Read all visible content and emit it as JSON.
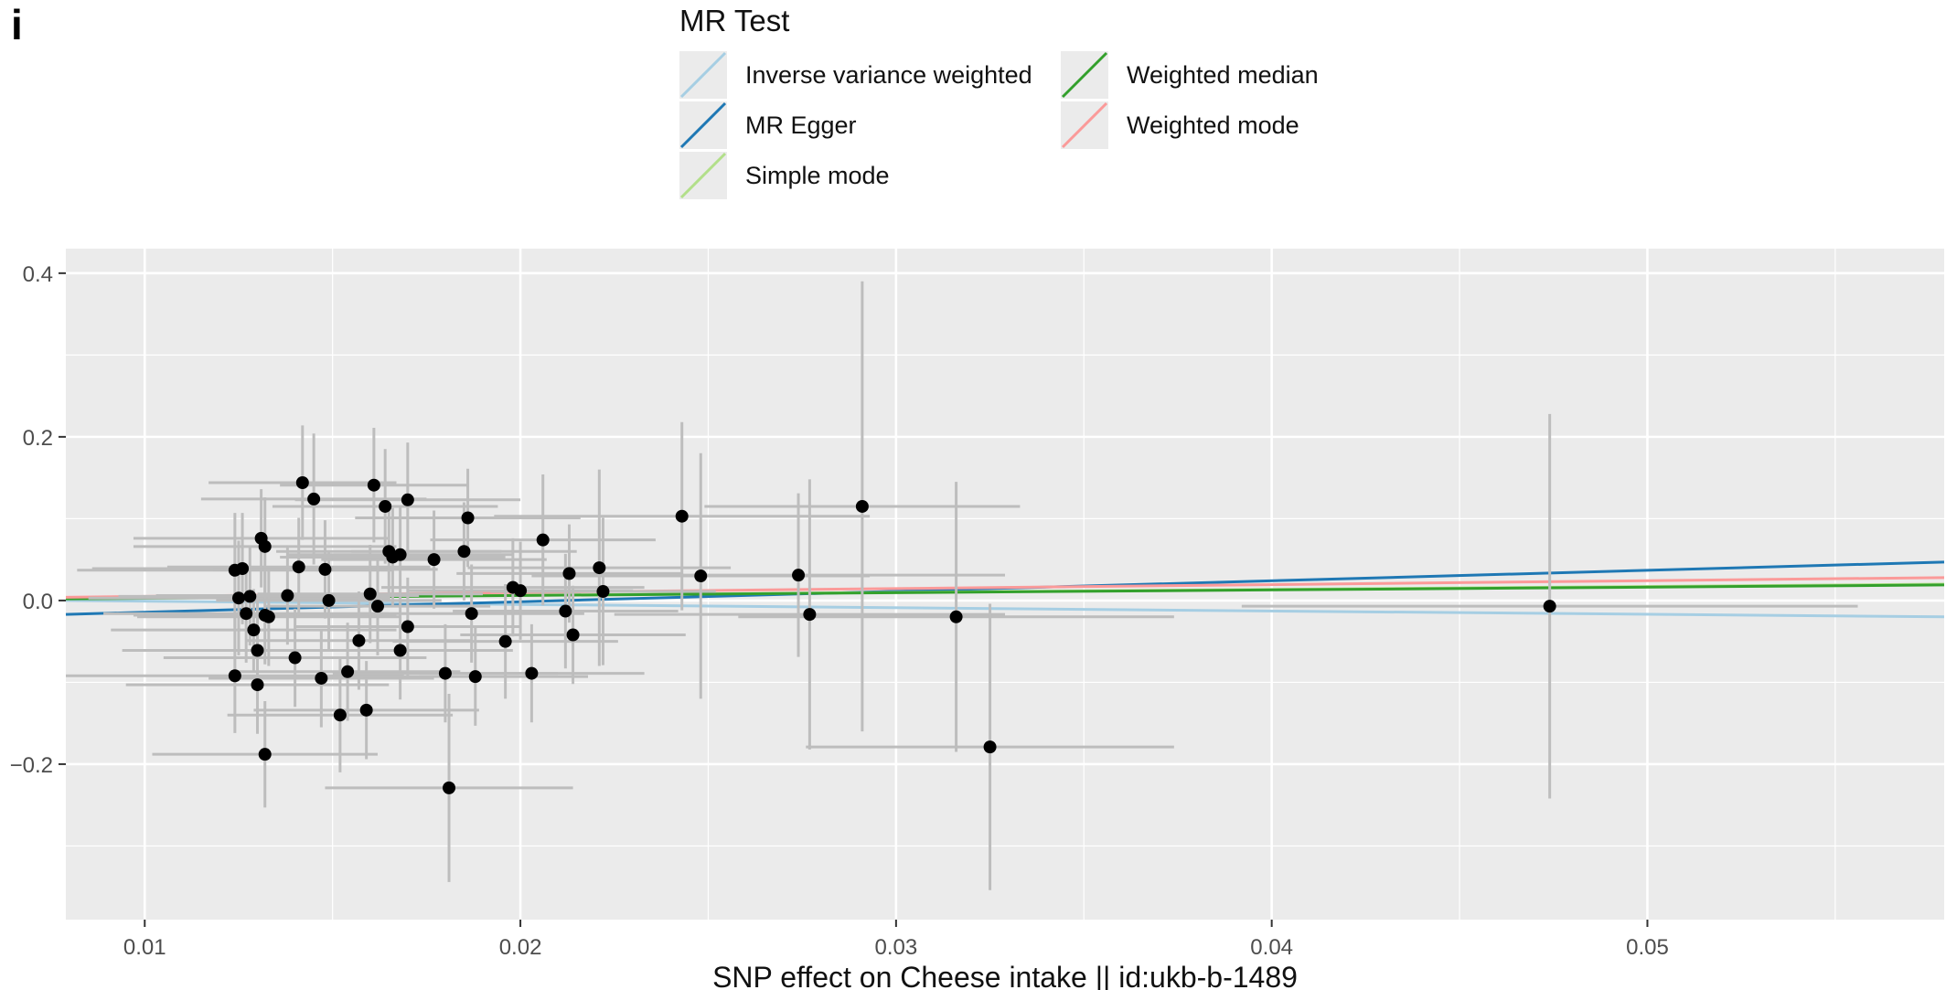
{
  "panel_tag": "i",
  "legend": {
    "title": "MR Test",
    "items": [
      {
        "label": "Inverse variance weighted",
        "color": "#a6cee3"
      },
      {
        "label": "MR Egger",
        "color": "#1f78b4"
      },
      {
        "label": "Simple mode",
        "color": "#b2df8a"
      },
      {
        "label": "Weighted median",
        "color": "#33a02c"
      },
      {
        "label": "Weighted mode",
        "color": "#fb9a99"
      }
    ]
  },
  "chart_data": {
    "type": "scatter",
    "title": "",
    "xlabel": "SNP effect on Cheese intake || id:ukb-b-1489",
    "ylabel": "",
    "xlim": [
      0.0079,
      0.0579
    ],
    "ylim": [
      -0.39,
      0.43
    ],
    "x_ticks": [
      0.01,
      0.02,
      0.03,
      0.04,
      0.05
    ],
    "x_tick_labels": [
      "0.01",
      "0.02",
      "0.03",
      "0.04",
      "0.05"
    ],
    "y_ticks": [
      -0.2,
      0.0,
      0.2,
      0.4
    ],
    "y_tick_labels": [
      "−0.2",
      "0.0",
      "0.2",
      "0.4"
    ],
    "grid": true,
    "background": "#ebebeb",
    "point_color": "#000000",
    "errorbar_color": "#bdbdbd",
    "points": [
      {
        "x": 0.0124,
        "y": 0.037,
        "xerr": 0.0042,
        "yerr": 0.07
      },
      {
        "x": 0.0126,
        "y": 0.039,
        "xerr": 0.004,
        "yerr": 0.068
      },
      {
        "x": 0.0125,
        "y": 0.003,
        "xerr": 0.004,
        "yerr": 0.07
      },
      {
        "x": 0.0128,
        "y": 0.005,
        "xerr": 0.0035,
        "yerr": 0.06
      },
      {
        "x": 0.0127,
        "y": -0.016,
        "xerr": 0.0038,
        "yerr": 0.06
      },
      {
        "x": 0.0129,
        "y": -0.036,
        "xerr": 0.0038,
        "yerr": 0.05
      },
      {
        "x": 0.013,
        "y": -0.061,
        "xerr": 0.0036,
        "yerr": 0.06
      },
      {
        "x": 0.0124,
        "y": -0.092,
        "xerr": 0.0045,
        "yerr": 0.07
      },
      {
        "x": 0.013,
        "y": -0.103,
        "xerr": 0.0035,
        "yerr": 0.06
      },
      {
        "x": 0.0131,
        "y": 0.076,
        "xerr": 0.0034,
        "yerr": 0.06
      },
      {
        "x": 0.0132,
        "y": 0.066,
        "xerr": 0.0035,
        "yerr": 0.06
      },
      {
        "x": 0.0132,
        "y": -0.018,
        "xerr": 0.0035,
        "yerr": 0.06
      },
      {
        "x": 0.0133,
        "y": -0.02,
        "xerr": 0.0035,
        "yerr": 0.06
      },
      {
        "x": 0.0132,
        "y": -0.188,
        "xerr": 0.003,
        "yerr": 0.065
      },
      {
        "x": 0.0138,
        "y": 0.006,
        "xerr": 0.0035,
        "yerr": 0.06
      },
      {
        "x": 0.014,
        "y": -0.07,
        "xerr": 0.0035,
        "yerr": 0.06
      },
      {
        "x": 0.0141,
        "y": 0.041,
        "xerr": 0.0035,
        "yerr": 0.06
      },
      {
        "x": 0.0142,
        "y": 0.144,
        "xerr": 0.0025,
        "yerr": 0.07
      },
      {
        "x": 0.0145,
        "y": 0.124,
        "xerr": 0.003,
        "yerr": 0.08
      },
      {
        "x": 0.0147,
        "y": -0.095,
        "xerr": 0.003,
        "yerr": 0.06
      },
      {
        "x": 0.0148,
        "y": 0.038,
        "xerr": 0.003,
        "yerr": 0.06
      },
      {
        "x": 0.0149,
        "y": 0.0,
        "xerr": 0.003,
        "yerr": 0.06
      },
      {
        "x": 0.0152,
        "y": -0.14,
        "xerr": 0.003,
        "yerr": 0.07
      },
      {
        "x": 0.0154,
        "y": -0.087,
        "xerr": 0.003,
        "yerr": 0.06
      },
      {
        "x": 0.0157,
        "y": -0.049,
        "xerr": 0.003,
        "yerr": 0.06
      },
      {
        "x": 0.0159,
        "y": -0.134,
        "xerr": 0.003,
        "yerr": 0.06
      },
      {
        "x": 0.016,
        "y": 0.008,
        "xerr": 0.003,
        "yerr": 0.06
      },
      {
        "x": 0.0161,
        "y": 0.141,
        "xerr": 0.0025,
        "yerr": 0.07
      },
      {
        "x": 0.0162,
        "y": -0.007,
        "xerr": 0.003,
        "yerr": 0.06
      },
      {
        "x": 0.0164,
        "y": 0.115,
        "xerr": 0.003,
        "yerr": 0.07
      },
      {
        "x": 0.0165,
        "y": 0.06,
        "xerr": 0.003,
        "yerr": 0.06
      },
      {
        "x": 0.0166,
        "y": 0.053,
        "xerr": 0.003,
        "yerr": 0.06
      },
      {
        "x": 0.0168,
        "y": 0.056,
        "xerr": 0.003,
        "yerr": 0.06
      },
      {
        "x": 0.0168,
        "y": -0.061,
        "xerr": 0.003,
        "yerr": 0.06
      },
      {
        "x": 0.017,
        "y": -0.032,
        "xerr": 0.003,
        "yerr": 0.06
      },
      {
        "x": 0.017,
        "y": 0.123,
        "xerr": 0.003,
        "yerr": 0.07
      },
      {
        "x": 0.0177,
        "y": 0.05,
        "xerr": 0.003,
        "yerr": 0.06
      },
      {
        "x": 0.018,
        "y": -0.089,
        "xerr": 0.003,
        "yerr": 0.06
      },
      {
        "x": 0.0181,
        "y": -0.229,
        "xerr": 0.0033,
        "yerr": 0.115
      },
      {
        "x": 0.0185,
        "y": 0.06,
        "xerr": 0.003,
        "yerr": 0.06
      },
      {
        "x": 0.0186,
        "y": 0.101,
        "xerr": 0.003,
        "yerr": 0.06
      },
      {
        "x": 0.0187,
        "y": -0.016,
        "xerr": 0.003,
        "yerr": 0.06
      },
      {
        "x": 0.0188,
        "y": -0.093,
        "xerr": 0.003,
        "yerr": 0.06
      },
      {
        "x": 0.0196,
        "y": -0.05,
        "xerr": 0.003,
        "yerr": 0.07
      },
      {
        "x": 0.0198,
        "y": 0.016,
        "xerr": 0.0035,
        "yerr": 0.06
      },
      {
        "x": 0.02,
        "y": 0.012,
        "xerr": 0.003,
        "yerr": 0.06
      },
      {
        "x": 0.0203,
        "y": -0.089,
        "xerr": 0.003,
        "yerr": 0.06
      },
      {
        "x": 0.0206,
        "y": 0.074,
        "xerr": 0.003,
        "yerr": 0.08
      },
      {
        "x": 0.0212,
        "y": -0.013,
        "xerr": 0.003,
        "yerr": 0.07
      },
      {
        "x": 0.0213,
        "y": 0.033,
        "xerr": 0.003,
        "yerr": 0.06
      },
      {
        "x": 0.0214,
        "y": -0.042,
        "xerr": 0.003,
        "yerr": 0.06
      },
      {
        "x": 0.0221,
        "y": 0.04,
        "xerr": 0.0035,
        "yerr": 0.12
      },
      {
        "x": 0.0222,
        "y": 0.011,
        "xerr": 0.003,
        "yerr": 0.09
      },
      {
        "x": 0.0243,
        "y": 0.103,
        "xerr": 0.005,
        "yerr": 0.115
      },
      {
        "x": 0.0248,
        "y": 0.03,
        "xerr": 0.0045,
        "yerr": 0.15
      },
      {
        "x": 0.0274,
        "y": 0.031,
        "xerr": 0.0055,
        "yerr": 0.1
      },
      {
        "x": 0.0277,
        "y": -0.017,
        "xerr": 0.0052,
        "yerr": 0.165
      },
      {
        "x": 0.0291,
        "y": 0.115,
        "xerr": 0.0042,
        "yerr": 0.275
      },
      {
        "x": 0.0316,
        "y": -0.02,
        "xerr": 0.0058,
        "yerr": 0.165
      },
      {
        "x": 0.0325,
        "y": -0.179,
        "xerr": 0.0049,
        "yerr": 0.175
      },
      {
        "x": 0.0474,
        "y": -0.007,
        "xerr": 0.0082,
        "yerr": 0.235
      }
    ],
    "lines": [
      {
        "name": "Inverse variance weighted",
        "color": "#a6cee3",
        "y_at_xmin": 0.0,
        "y_at_xmax": -0.02
      },
      {
        "name": "MR Egger",
        "color": "#1f78b4",
        "y_at_xmin": -0.017,
        "y_at_xmax": 0.047
      },
      {
        "name": "Simple mode",
        "color": "#b2df8a",
        "y_at_xmin": 0.002,
        "y_at_xmax": 0.02
      },
      {
        "name": "Weighted median",
        "color": "#33a02c",
        "y_at_xmin": 0.002,
        "y_at_xmax": 0.019
      },
      {
        "name": "Weighted mode",
        "color": "#fb9a99",
        "y_at_xmin": 0.004,
        "y_at_xmax": 0.028
      }
    ]
  }
}
